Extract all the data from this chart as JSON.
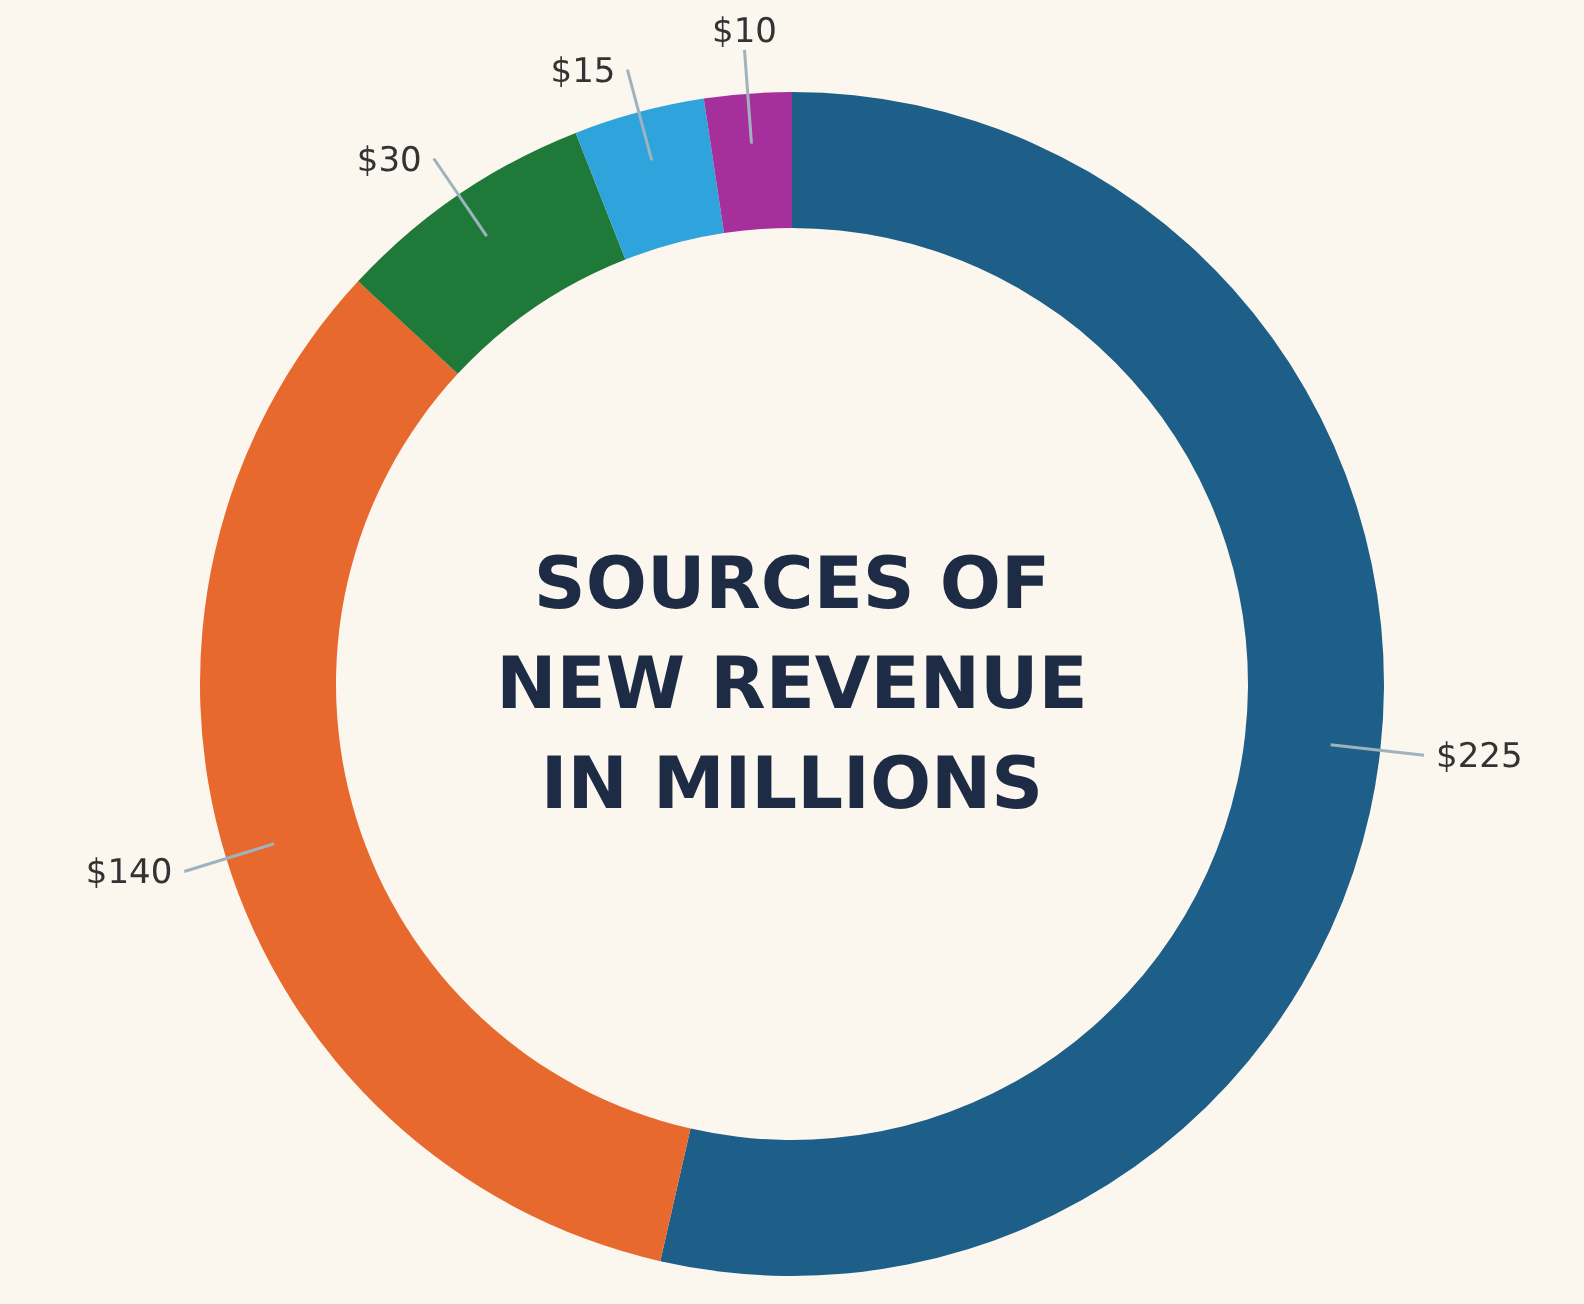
{
  "chart_data": {
    "type": "donut",
    "title": "SOURCES OF NEW REVENUE IN MILLIONS",
    "categories": [
      null,
      null,
      null,
      null,
      null
    ],
    "values": [
      225,
      140,
      30,
      15,
      10
    ],
    "value_labels": [
      "$225",
      "$140",
      "$30",
      "$15",
      "$10"
    ],
    "colors": [
      "#1d5f88",
      "#e8692e",
      "#1f7a3a",
      "#2fa3dc",
      "#a5309b"
    ]
  }
}
